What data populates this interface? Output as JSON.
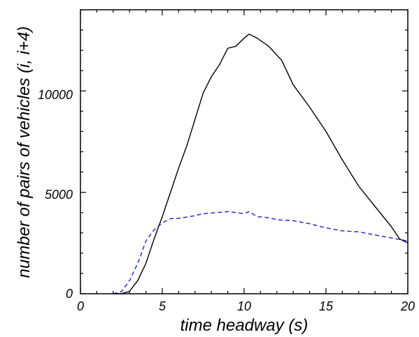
{
  "chart_data": {
    "type": "line",
    "xlabel": "time headway (s)",
    "ylabel": "number of pairs of vehicles (i, i+4)",
    "xlim": [
      0,
      20
    ],
    "ylim": [
      0,
      14000
    ],
    "x_ticks": [
      "0",
      "5",
      "10",
      "15",
      "20"
    ],
    "y_ticks": [
      "0",
      "5000",
      "10000"
    ],
    "grid": false,
    "series": [
      {
        "style": "solid",
        "color": "#000000",
        "points": [
          [
            2.0,
            0
          ],
          [
            2.5,
            0
          ],
          [
            3.0,
            120
          ],
          [
            3.5,
            650
          ],
          [
            4.0,
            1500
          ],
          [
            4.5,
            2700
          ],
          [
            5.0,
            3800
          ],
          [
            5.5,
            5000
          ],
          [
            6.0,
            6200
          ],
          [
            6.5,
            7300
          ],
          [
            7.0,
            8600
          ],
          [
            7.5,
            9900
          ],
          [
            8.0,
            10700
          ],
          [
            8.5,
            11300
          ],
          [
            9.0,
            12100
          ],
          [
            9.5,
            12200
          ],
          [
            10.0,
            12600
          ],
          [
            10.3,
            12800
          ],
          [
            10.8,
            12600
          ],
          [
            11.5,
            12200
          ],
          [
            12.3,
            11500
          ],
          [
            13.0,
            10300
          ],
          [
            14.0,
            9200
          ],
          [
            15.0,
            8000
          ],
          [
            16.0,
            6600
          ],
          [
            17.0,
            5300
          ],
          [
            18.0,
            4300
          ],
          [
            19.0,
            3300
          ],
          [
            19.5,
            2700
          ],
          [
            20.0,
            2500
          ]
        ]
      },
      {
        "style": "dashed",
        "color": "#1f1fcf",
        "points": [
          [
            2.0,
            0
          ],
          [
            2.5,
            100
          ],
          [
            3.0,
            650
          ],
          [
            3.5,
            1500
          ],
          [
            4.0,
            2600
          ],
          [
            4.5,
            3150
          ],
          [
            5.0,
            3500
          ],
          [
            5.5,
            3700
          ],
          [
            6.0,
            3720
          ],
          [
            6.5,
            3780
          ],
          [
            7.0,
            3850
          ],
          [
            7.5,
            3950
          ],
          [
            8.0,
            3980
          ],
          [
            9.0,
            4050
          ],
          [
            9.5,
            4000
          ],
          [
            10.0,
            3950
          ],
          [
            10.3,
            4050
          ],
          [
            10.8,
            3800
          ],
          [
            11.5,
            3750
          ],
          [
            12.0,
            3650
          ],
          [
            13.0,
            3600
          ],
          [
            14.0,
            3450
          ],
          [
            15.0,
            3250
          ],
          [
            16.0,
            3100
          ],
          [
            17.0,
            3050
          ],
          [
            18.0,
            2900
          ],
          [
            19.0,
            2750
          ],
          [
            20.0,
            2600
          ]
        ]
      }
    ]
  }
}
